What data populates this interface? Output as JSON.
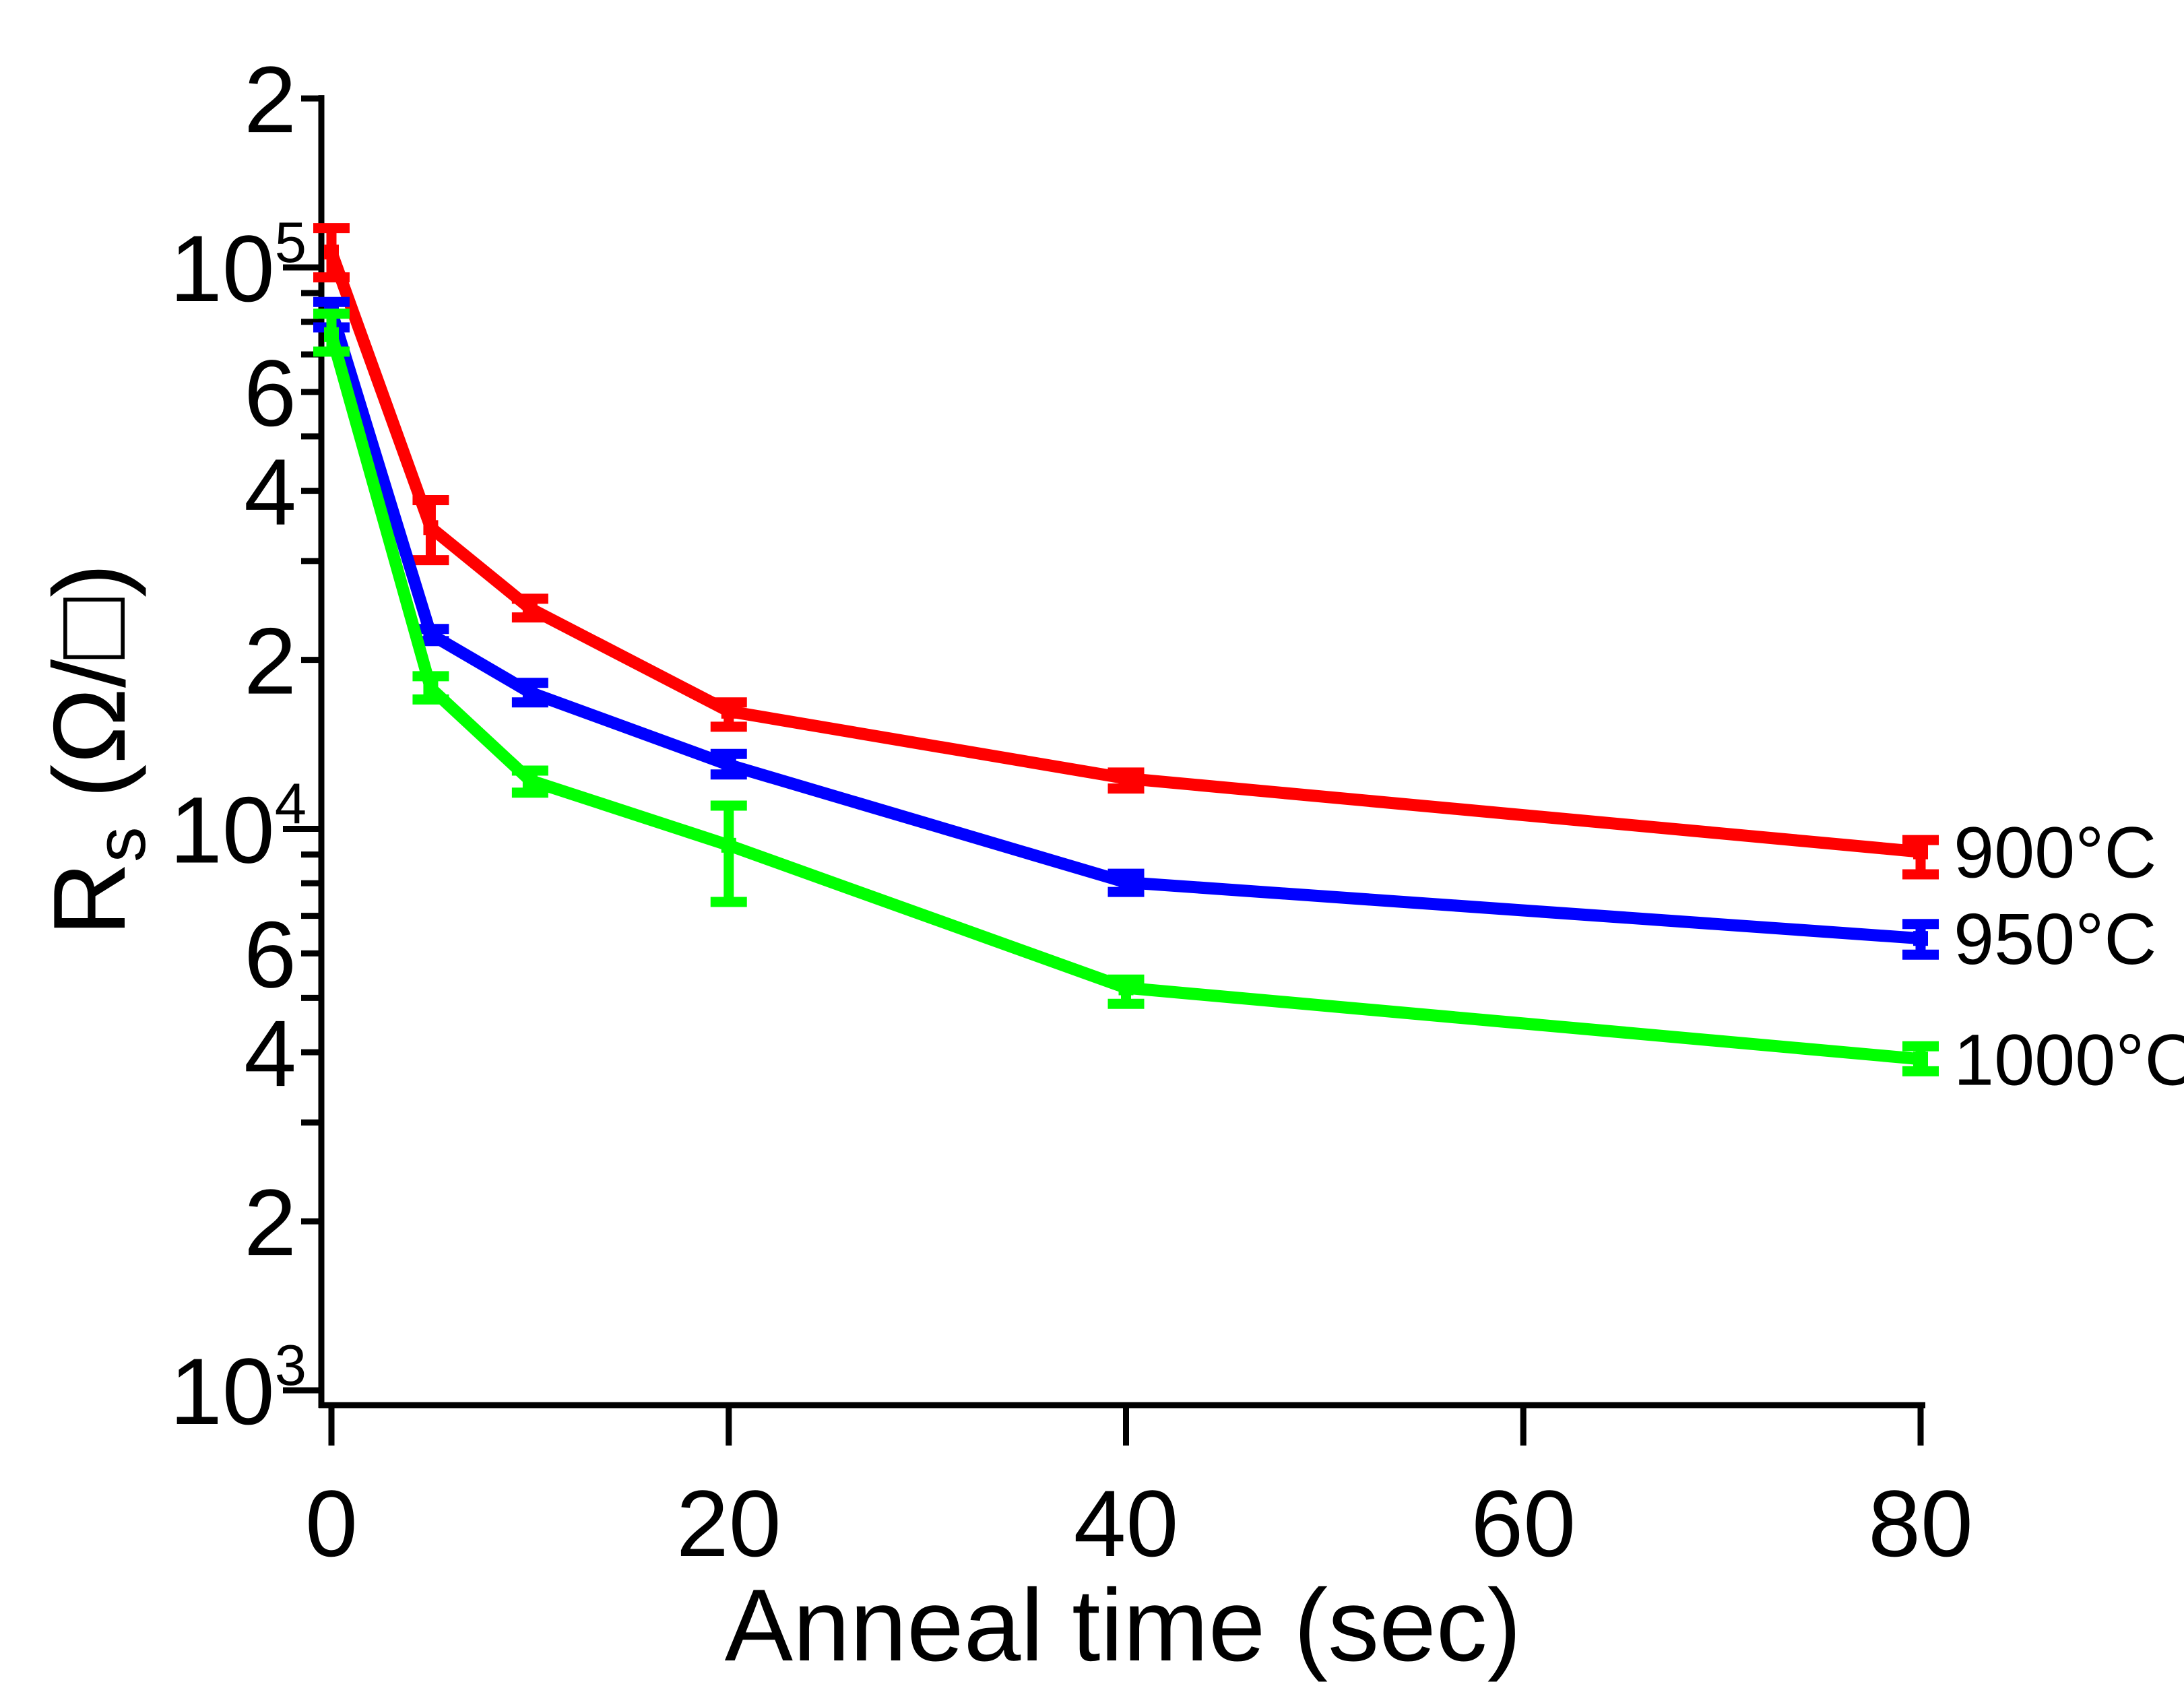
{
  "chart_data": {
    "type": "line",
    "x_axis": {
      "label": "Anneal time (sec)",
      "ticks": [
        0,
        20,
        40,
        60,
        80
      ],
      "xlim": [
        0,
        80
      ],
      "scale": "linear"
    },
    "y_axis": {
      "label_main": "R",
      "label_sub": "s",
      "label_rest": " (Ω/□)",
      "unit": "Ω/□",
      "scale": "log",
      "ylim": [
        1000,
        200000
      ],
      "major_ticks": [
        {
          "value": 100000,
          "base": "10",
          "exp": "5"
        },
        {
          "value": 10000,
          "base": "10",
          "exp": "4"
        },
        {
          "value": 1000,
          "base": "10",
          "exp": "3"
        }
      ],
      "minor_labeled_ticks": [
        {
          "value": 200000,
          "label": "2"
        },
        {
          "value": 60000,
          "label": "6"
        },
        {
          "value": 40000,
          "label": "4"
        },
        {
          "value": 20000,
          "label": "2"
        },
        {
          "value": 6000,
          "label": "6"
        },
        {
          "value": 4000,
          "label": "4"
        },
        {
          "value": 2000,
          "label": "2"
        }
      ],
      "minor_unlabeled_ticks": [
        90000,
        80000,
        70000,
        50000,
        30000,
        9000,
        8000,
        7000,
        5000,
        3000
      ]
    },
    "grid": "off",
    "legend_position": "right-of-line-ends",
    "series": [
      {
        "name": "900°C",
        "color": "#ff0000",
        "x": [
          0,
          5,
          10,
          20,
          40,
          80
        ],
        "y": [
          106500,
          34400,
          24700,
          16200,
          12300,
          9100
        ],
        "y_lo": [
          96000,
          30100,
          23800,
          15200,
          11800,
          8300
        ],
        "y_hi": [
          117500,
          38500,
          25700,
          16800,
          12600,
          9550
        ]
      },
      {
        "name": "950°C",
        "color": "#0000ff",
        "x": [
          0,
          5,
          10,
          20,
          40,
          80
        ],
        "y": [
          83600,
          22200,
          17500,
          13000,
          8030,
          6380
        ],
        "y_lo": [
          78200,
          21600,
          16800,
          12500,
          7720,
          5970
        ],
        "y_hi": [
          86800,
          22700,
          18200,
          13600,
          8320,
          6770
        ]
      },
      {
        "name": "1000°C",
        "color": "#00ff00",
        "x": [
          0,
          5,
          10,
          20,
          40,
          80
        ],
        "y": [
          75900,
          17800,
          12200,
          9350,
          5210,
          3890
        ],
        "y_lo": [
          70800,
          17000,
          11600,
          7410,
          4880,
          3700
        ],
        "y_hi": [
          82700,
          18700,
          12700,
          11000,
          5390,
          4100
        ]
      }
    ],
    "axis_color": "#000000",
    "background_color": "#ffffff"
  }
}
